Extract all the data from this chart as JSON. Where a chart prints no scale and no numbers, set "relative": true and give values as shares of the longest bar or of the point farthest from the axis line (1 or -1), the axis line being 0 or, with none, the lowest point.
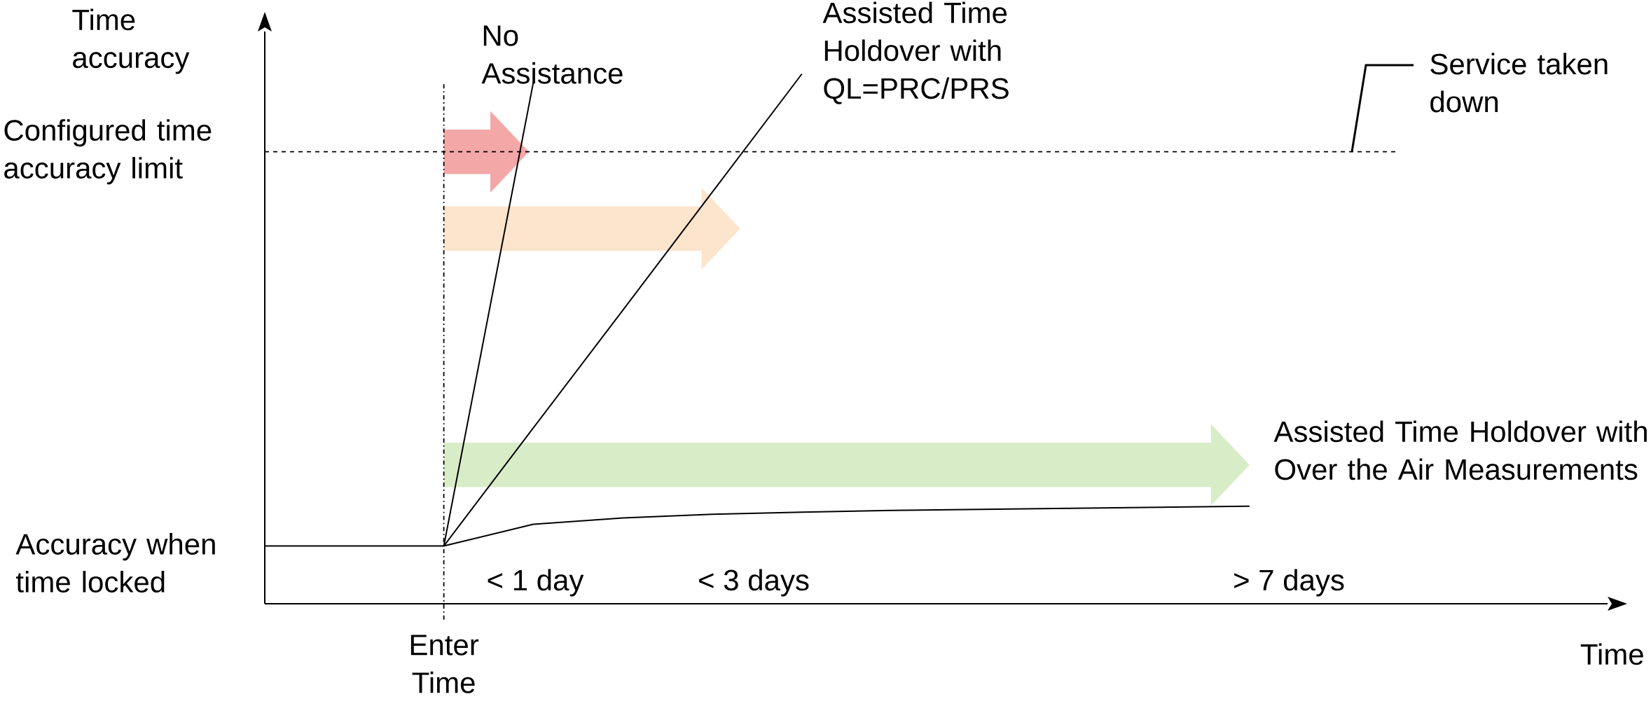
{
  "chart_data": {
    "type": "line",
    "relative": true,
    "ylabel": "Time accuracy",
    "xlabel": "Time",
    "categories": [
      null,
      null,
      null,
      null,
      null,
      null,
      null,
      null,
      null,
      null,
      null,
      null,
      null,
      null,
      null,
      null
    ],
    "series": [
      {
        "name": "No Assistance",
        "color": "#000000",
        "values": [
          null,
          null,
          0.109,
          0.984,
          null,
          null,
          null,
          null,
          null,
          null,
          null,
          null,
          null,
          null,
          null,
          null
        ]
      },
      {
        "name": "Assisted Time Holdover with QL=PRC/PRS",
        "color": "#000000",
        "values": [
          null,
          null,
          0.109,
          0.332,
          0.554,
          0.777,
          1.0,
          null,
          null,
          null,
          null,
          null,
          null,
          null,
          null,
          null
        ]
      },
      {
        "name": "Assisted Time Holdover with Over the Air Measurements",
        "color": "#000000",
        "values": [
          0.109,
          0.109,
          0.109,
          0.15,
          0.162,
          0.169,
          0.173,
          0.176,
          0.178,
          0.18,
          0.182,
          0.184,
          null,
          null,
          null,
          null
        ]
      }
    ],
    "ref_lines": [
      {
        "axis": "y",
        "value": 0.853,
        "label": "Configured time accuracy limit",
        "line_style": "dashed"
      }
    ],
    "annotations": [
      "Enter Time",
      "Accuracy when time locked",
      "Service taken down",
      "< 1 day",
      "< 3 days",
      "> 7 days"
    ]
  }
}
